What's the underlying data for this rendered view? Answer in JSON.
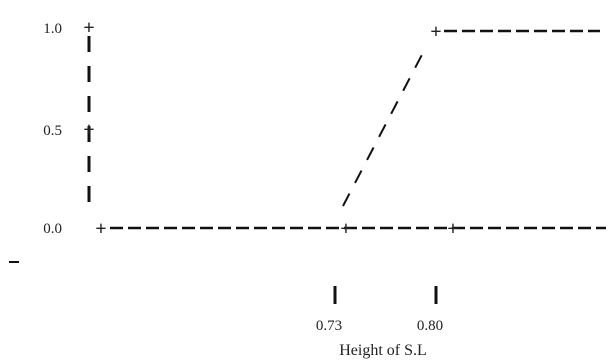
{
  "chart_data": {
    "type": "line",
    "title": "",
    "xlabel": "Height of S.L",
    "ylabel": "",
    "x_tick_labels": [
      "0.73",
      "0.80"
    ],
    "y_tick_labels": [
      "1.0",
      "0.5",
      "0.0"
    ],
    "x_ticks": [
      0.73,
      0.8
    ],
    "y_ticks": [
      1.0,
      0.5,
      0.0
    ],
    "series": [
      {
        "x": [
          0.73,
          0.8
        ],
        "y": [
          0.0,
          1.0
        ]
      }
    ],
    "grid": false,
    "legend": "none",
    "line_style": "dashed",
    "line_color": "#111111"
  }
}
